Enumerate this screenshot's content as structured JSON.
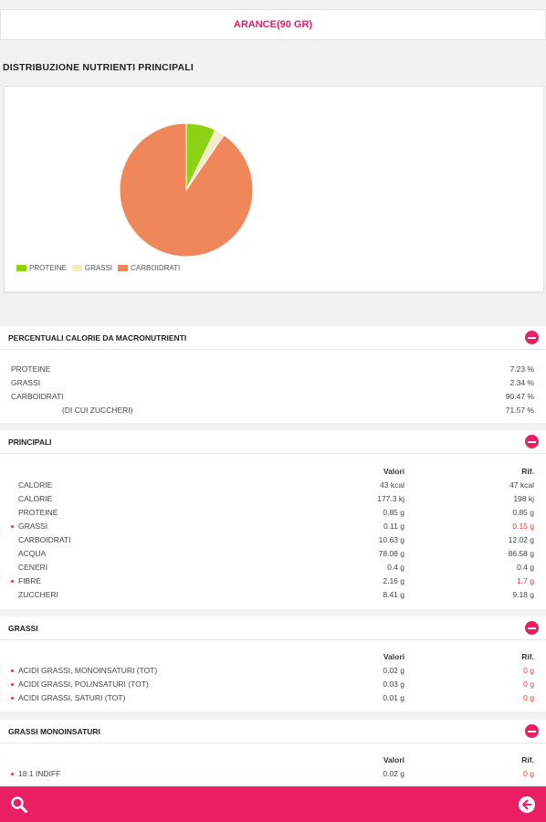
{
  "title": "ARANCE(90 GR)",
  "distribution_title": "DISTRIBUZIONE NUTRIENTI PRINCIPALI",
  "chart_data": {
    "type": "pie",
    "categories": [
      "PROTEINE",
      "GRASSI",
      "CARBOIDRATI"
    ],
    "values": [
      7.23,
      2.34,
      90.47
    ],
    "colors": [
      "#8bd313",
      "#f4ecc4",
      "#f0875b"
    ],
    "legend_position": "bottom-left"
  },
  "percentuali": {
    "label": "PERCENTUALI CALORIE DA MACRONUTRIENTI",
    "rows": [
      {
        "name": "PROTEINE",
        "value": "7.23 %"
      },
      {
        "name": "GRASSI",
        "value": "2.34 %"
      },
      {
        "name": "CARBOIDRATI",
        "value": "90.47 %"
      },
      {
        "name": "(DI CUI ZUCCHERI)",
        "value": "71.57 %"
      }
    ]
  },
  "principali": {
    "label": "PRINCIPALI",
    "col_valori": "Valori",
    "col_rif": "Rif.",
    "rows": [
      {
        "name": "CALORIE",
        "valore": "43 kcal",
        "rif": "47 kcal"
      },
      {
        "name": "CALORIE",
        "valore": "177.3 kj",
        "rif": "198 kj"
      },
      {
        "name": "PROTEINE",
        "valore": "0.85 g",
        "rif": "0.85 g"
      },
      {
        "name": "GRASSI",
        "valore": "0.11 g",
        "rif": "0.15 g"
      },
      {
        "name": "CARBOIDRATI",
        "valore": "10.63 g",
        "rif": "12.02 g"
      },
      {
        "name": "ACQUA",
        "valore": "78.08 g",
        "rif": "86.58 g"
      },
      {
        "name": "CENERI",
        "valore": "0.4 g",
        "rif": "0.4 g"
      },
      {
        "name": "FIBRE",
        "valore": "2.16 g",
        "rif": "1.7 g"
      },
      {
        "name": "ZUCCHERI",
        "valore": "8.41 g",
        "rif": "9.18 g"
      }
    ]
  },
  "grassi": {
    "label": "GRASSI",
    "col_valori": "Valori",
    "col_rif": "Rif.",
    "rows": [
      {
        "name": "ACIDI GRASSI, MONOINSATURI (TOT)",
        "valore": "0.02 g",
        "rif": "0 g"
      },
      {
        "name": "ACIDI GRASSI, POLINSATURI (TOT)",
        "valore": "0.03 g",
        "rif": "0 g"
      },
      {
        "name": "ACIDI GRASSI, SATURI (TOT)",
        "valore": "0.01 g",
        "rif": "0 g"
      }
    ]
  },
  "grassi_mono": {
    "label": "GRASSI MONOINSATURI",
    "col_valori": "Valori",
    "col_rif": "Rif.",
    "rows": [
      {
        "name": "18:1 INDIFF",
        "valore": "0.02 g",
        "rif": "0 g"
      }
    ]
  },
  "bottom_bar": {
    "color": "#e91e63",
    "left_icon": "search-icon",
    "right_icon": "back-arrow-icon"
  }
}
